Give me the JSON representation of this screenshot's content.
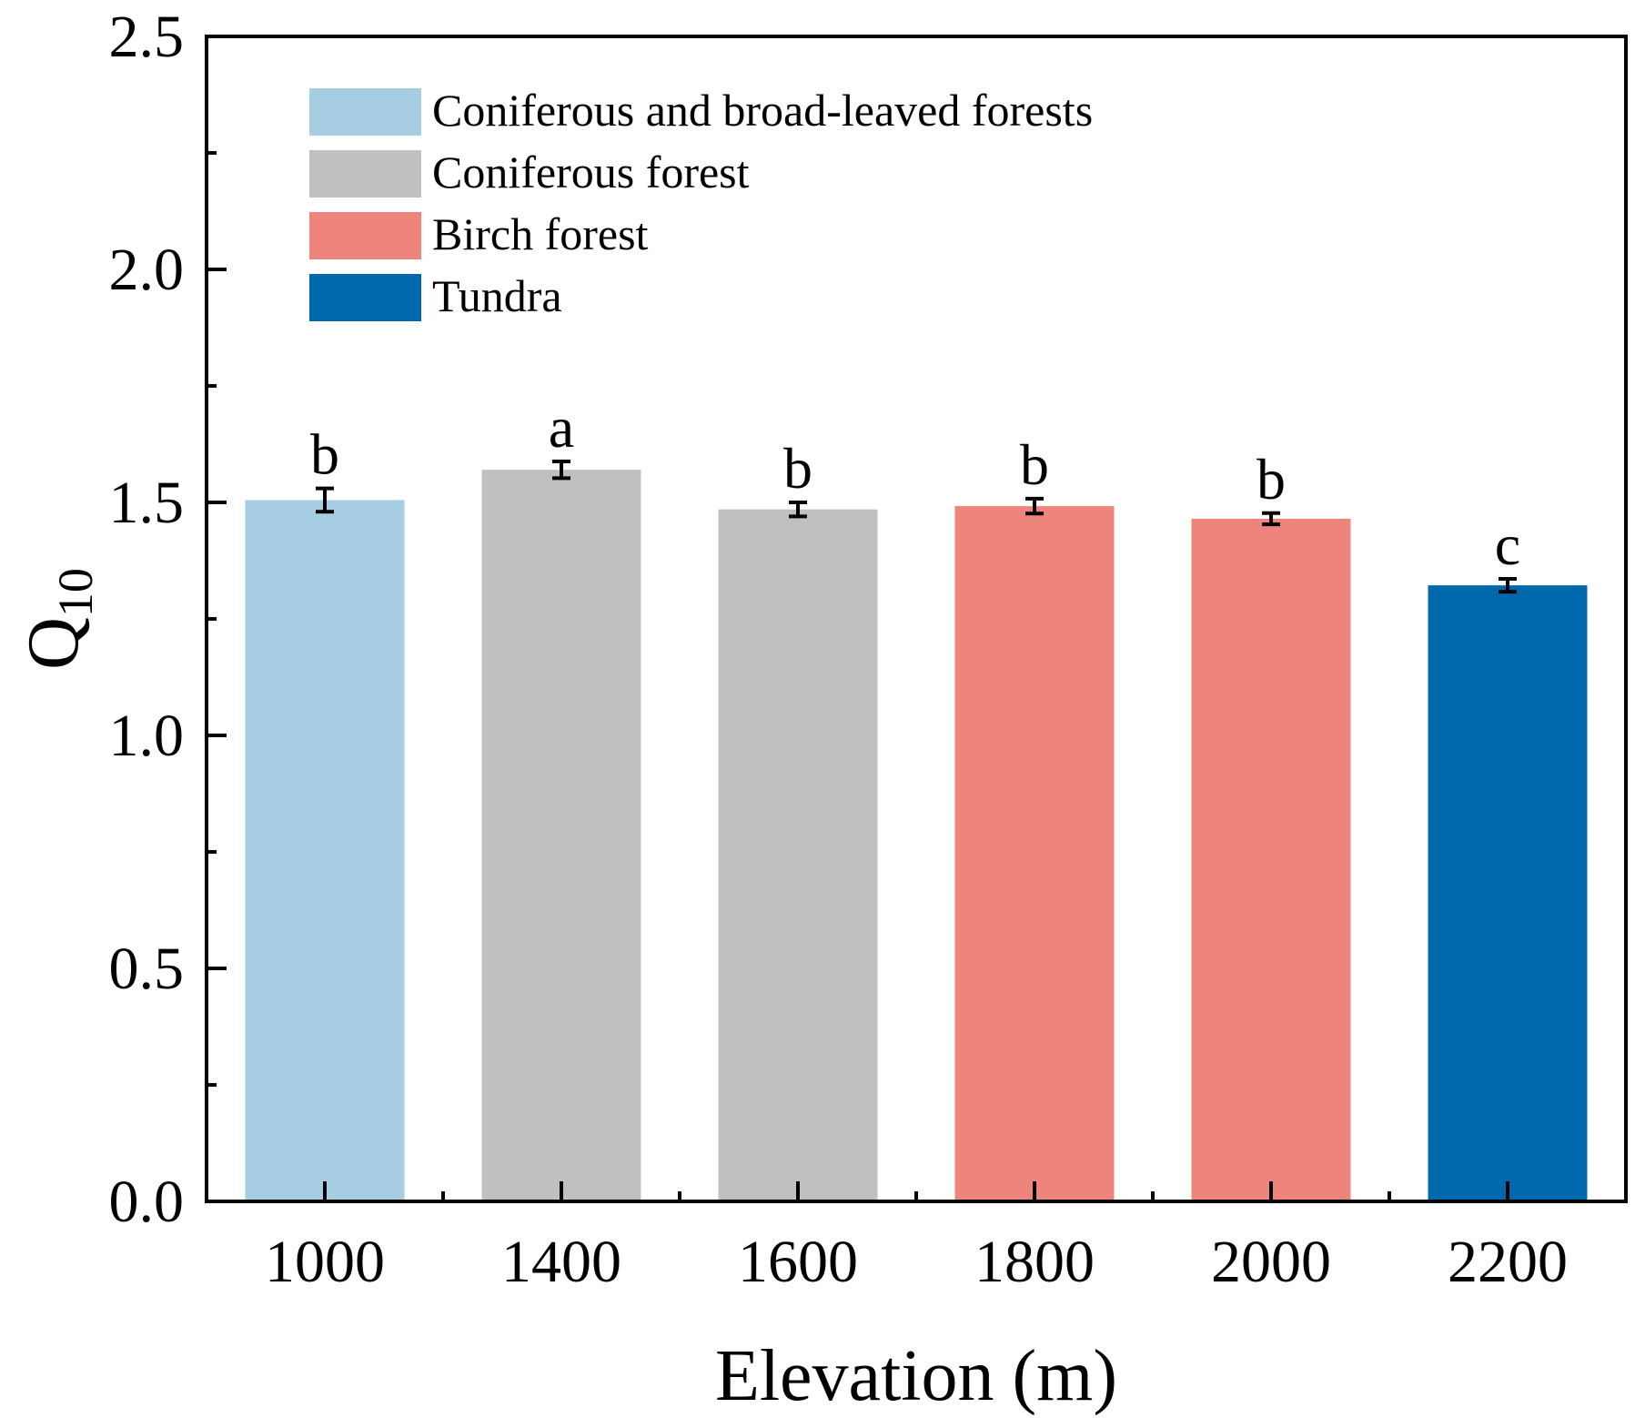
{
  "chart_data": {
    "type": "bar",
    "title": "",
    "xlabel": "Elevation (m)",
    "ylabel": {
      "main": "Q",
      "sub": "10"
    },
    "ylim": [
      0,
      2.5
    ],
    "yticks": [
      "0.0",
      "0.5",
      "1.0",
      "1.5",
      "2.0",
      "2.5"
    ],
    "grid": false,
    "legend_position": "top-left",
    "categories": [
      "1000",
      "1400",
      "1600",
      "1800",
      "2000",
      "2200"
    ],
    "values": [
      1.505,
      1.57,
      1.485,
      1.492,
      1.465,
      1.322
    ],
    "errors": [
      0.025,
      0.018,
      0.015,
      0.016,
      0.012,
      0.014
    ],
    "letters": [
      "b",
      "a",
      "b",
      "b",
      "b",
      "c"
    ],
    "groups": [
      0,
      1,
      1,
      2,
      2,
      3
    ],
    "legend": [
      {
        "label": "Coniferous and broad-leaved forests",
        "color": "#a6cde1"
      },
      {
        "label": "Coniferous forest",
        "color": "#c0c0c0"
      },
      {
        "label": "Birch forest",
        "color": "#ed857d"
      },
      {
        "label": "Tundra",
        "color": "#0068ac"
      }
    ]
  }
}
